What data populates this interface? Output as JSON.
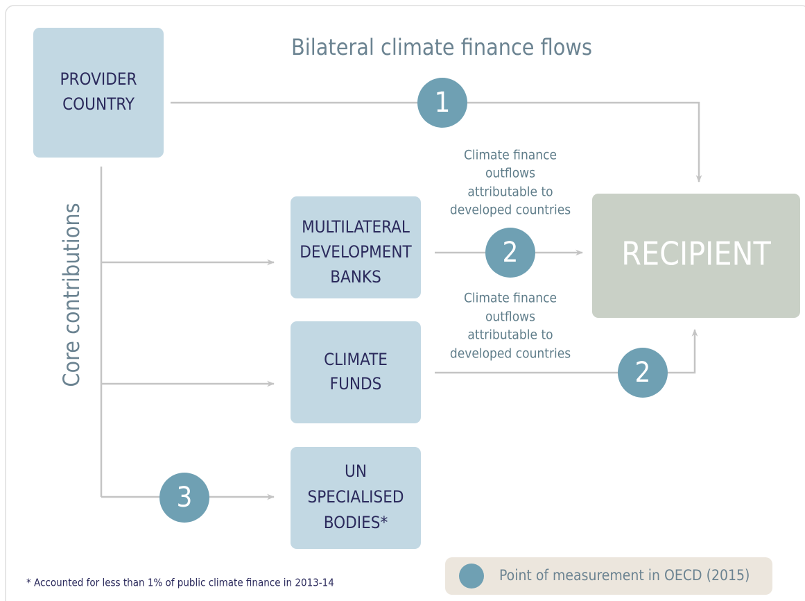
{
  "title": "Bilateral climate finance flows",
  "side_label": "Core contributions",
  "nodes": [
    {
      "id": "provider",
      "lines": [
        "PROVIDER",
        "COUNTRY"
      ]
    },
    {
      "id": "mdb",
      "lines": [
        "MULTILATERAL",
        "DEVELOPMENT",
        "BANKS"
      ]
    },
    {
      "id": "funds",
      "lines": [
        "CLIMATE",
        "FUNDS"
      ]
    },
    {
      "id": "un",
      "lines": [
        "UN",
        "SPECIALISED",
        "BODIES*"
      ]
    },
    {
      "id": "recipient",
      "lines": [
        "RECIPIENT"
      ]
    }
  ],
  "annotations": [
    {
      "lines": [
        "Climate finance",
        "outflows",
        "attributable to",
        "developed countries"
      ]
    },
    {
      "lines": [
        "Climate finance",
        "outflows",
        "attributable to",
        "developed countries"
      ]
    }
  ],
  "markers": [
    "1",
    "2",
    "2",
    "3"
  ],
  "footnote": "* Accounted for less than 1% of public climate finance in 2013-14",
  "legend": "Point of measurement in OECD (2015)"
}
